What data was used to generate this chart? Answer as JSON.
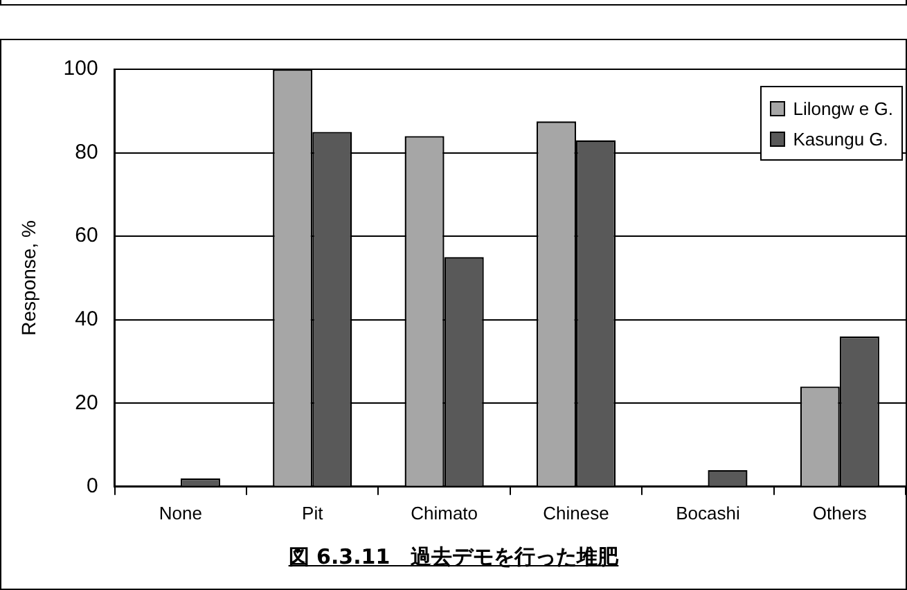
{
  "chart_data": {
    "type": "bar",
    "title": "図 6.3.11　過去デモを行った堆肥",
    "ylabel": "Response, %",
    "categories": [
      "None",
      "Pit",
      "Chimato",
      "Chinese",
      "Bocashi",
      "Others"
    ],
    "series": [
      {
        "name": "Lilongw e G.",
        "color": "#a6a6a6",
        "values": [
          0,
          100,
          84,
          87.5,
          0,
          24
        ]
      },
      {
        "name": "Kasungu G.",
        "color": "#595959",
        "values": [
          2,
          85,
          55,
          83,
          4,
          36
        ]
      }
    ],
    "ylim": [
      0,
      100
    ],
    "yticks": [
      0,
      20,
      40,
      60,
      80,
      100
    ],
    "grid": "y",
    "legend": "top right"
  }
}
